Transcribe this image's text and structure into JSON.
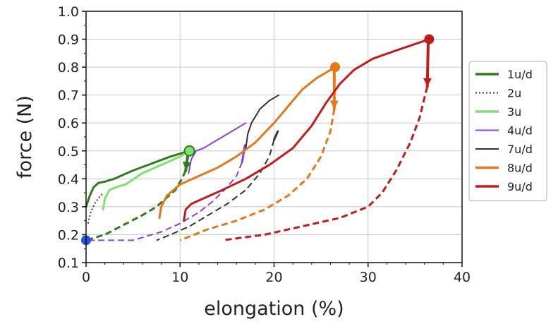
{
  "chart_data": {
    "type": "line",
    "xlabel": "elongation (%)",
    "ylabel": "force (N)",
    "xlim": [
      0,
      40
    ],
    "ylim": [
      0.1,
      1.0
    ],
    "xticks": [
      "0",
      "10",
      "20",
      "30",
      "40"
    ],
    "yticks": [
      "0.1",
      "0.2",
      "0.3",
      "0.4",
      "0.5",
      "0.6",
      "0.7",
      "0.8",
      "0.9",
      "1.0"
    ],
    "grid": true,
    "legend_position": "right",
    "series": [
      {
        "name": "1u/d",
        "color": "#2e7d1e",
        "loading": [
          [
            0,
            0.3
          ],
          [
            0.4,
            0.34
          ],
          [
            0.8,
            0.37
          ],
          [
            1.3,
            0.385
          ],
          [
            2,
            0.39
          ],
          [
            3,
            0.4
          ],
          [
            5,
            0.43
          ],
          [
            7,
            0.455
          ],
          [
            9,
            0.48
          ],
          [
            11,
            0.5
          ]
        ],
        "unloading": [
          [
            10.9,
            0.5
          ],
          [
            10.6,
            0.43
          ],
          [
            10.2,
            0.4
          ],
          [
            9.5,
            0.36
          ],
          [
            8.5,
            0.33
          ],
          [
            7.5,
            0.3
          ],
          [
            6,
            0.27
          ],
          [
            4,
            0.235
          ],
          [
            2,
            0.2
          ],
          [
            0,
            0.18
          ]
        ],
        "max_point": [
          11,
          0.5
        ],
        "end_point": [
          0,
          0.18
        ]
      },
      {
        "name": "2u",
        "color": "#333333",
        "loading": [
          [
            0.2,
            0.24
          ],
          [
            0.5,
            0.28
          ],
          [
            0.9,
            0.31
          ],
          [
            1.3,
            0.33
          ],
          [
            1.7,
            0.345
          ]
        ]
      },
      {
        "name": "3u",
        "color": "#7fe06e",
        "loading": [
          [
            1.8,
            0.29
          ],
          [
            2,
            0.33
          ],
          [
            2.5,
            0.36
          ],
          [
            3.2,
            0.37
          ],
          [
            4.2,
            0.38
          ],
          [
            6,
            0.42
          ],
          [
            8,
            0.45
          ],
          [
            10,
            0.48
          ],
          [
            11,
            0.5
          ]
        ]
      },
      {
        "name": "4u/d",
        "color": "#8a3fe0",
        "loading": [
          [
            10.9,
            0.42
          ],
          [
            11.2,
            0.47
          ],
          [
            11.7,
            0.5
          ],
          [
            12.5,
            0.51
          ],
          [
            14,
            0.54
          ],
          [
            15.5,
            0.57
          ],
          [
            17,
            0.6
          ]
        ],
        "unloading": [
          [
            16.9,
            0.52
          ],
          [
            16.6,
            0.46
          ],
          [
            16,
            0.41
          ],
          [
            15,
            0.37
          ],
          [
            13.5,
            0.32
          ],
          [
            12,
            0.28
          ],
          [
            10,
            0.24
          ],
          [
            8,
            0.21
          ],
          [
            6,
            0.19
          ],
          [
            5,
            0.18
          ],
          [
            3,
            0.18
          ],
          [
            0,
            0.18
          ]
        ]
      },
      {
        "name": "7u/d",
        "color": "#333333",
        "loading": [
          [
            17,
            0.51
          ],
          [
            17.2,
            0.56
          ],
          [
            17.6,
            0.6
          ],
          [
            18.5,
            0.65
          ],
          [
            19.5,
            0.68
          ],
          [
            20.5,
            0.7
          ]
        ],
        "unloading": [
          [
            20.4,
            0.57
          ],
          [
            20,
            0.54
          ],
          [
            19.5,
            0.48
          ],
          [
            18.5,
            0.42
          ],
          [
            17,
            0.36
          ],
          [
            15,
            0.31
          ],
          [
            13,
            0.27
          ],
          [
            11,
            0.23
          ],
          [
            9,
            0.2
          ],
          [
            7.5,
            0.18
          ]
        ]
      },
      {
        "name": "8u/d",
        "color": "#e27a1a",
        "loading": [
          [
            7.8,
            0.26
          ],
          [
            8,
            0.3
          ],
          [
            8.6,
            0.34
          ],
          [
            10,
            0.38
          ],
          [
            12,
            0.41
          ],
          [
            14,
            0.44
          ],
          [
            16,
            0.48
          ],
          [
            18,
            0.53
          ],
          [
            20,
            0.6
          ],
          [
            21.5,
            0.66
          ],
          [
            23,
            0.72
          ],
          [
            24.5,
            0.76
          ],
          [
            26.5,
            0.8
          ]
        ],
        "unloading": [
          [
            26.4,
            0.79
          ],
          [
            26.4,
            0.65
          ],
          [
            26,
            0.57
          ],
          [
            25,
            0.48
          ],
          [
            23.5,
            0.4
          ],
          [
            21.5,
            0.34
          ],
          [
            19,
            0.29
          ],
          [
            16,
            0.25
          ],
          [
            13,
            0.22
          ],
          [
            10,
            0.18
          ]
        ],
        "max_point": [
          26.5,
          0.8
        ]
      },
      {
        "name": "9u/d",
        "color": "#c01c1c",
        "loading": [
          [
            10.4,
            0.25
          ],
          [
            10.6,
            0.29
          ],
          [
            11.2,
            0.31
          ],
          [
            12.5,
            0.33
          ],
          [
            14.5,
            0.36
          ],
          [
            17,
            0.4
          ],
          [
            19.5,
            0.45
          ],
          [
            22,
            0.51
          ],
          [
            24,
            0.59
          ],
          [
            25.5,
            0.67
          ],
          [
            27,
            0.74
          ],
          [
            28.5,
            0.79
          ],
          [
            30.5,
            0.83
          ],
          [
            33,
            0.86
          ],
          [
            36.5,
            0.9
          ]
        ],
        "unloading": [
          [
            36.4,
            0.89
          ],
          [
            36.3,
            0.73
          ],
          [
            36,
            0.69
          ],
          [
            35.5,
            0.62
          ],
          [
            34.5,
            0.53
          ],
          [
            33,
            0.43
          ],
          [
            31.5,
            0.35
          ],
          [
            30,
            0.3
          ],
          [
            27,
            0.26
          ],
          [
            23,
            0.23
          ],
          [
            19,
            0.2
          ],
          [
            14.5,
            0.18
          ]
        ],
        "max_point": [
          36.5,
          0.9
        ]
      }
    ]
  }
}
